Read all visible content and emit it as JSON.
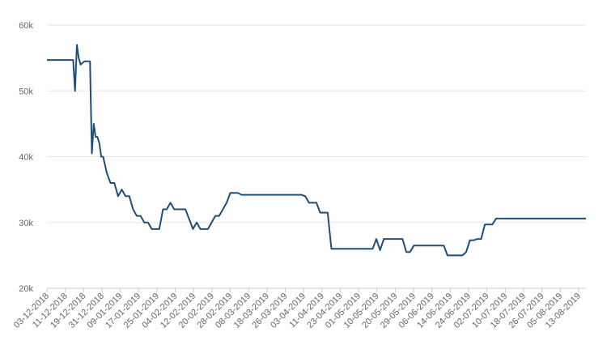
{
  "chart_data": {
    "type": "line",
    "title": "",
    "xlabel": "",
    "ylabel": "",
    "ylim": [
      20000,
      60000
    ],
    "y_ticks": [
      {
        "value": 20000,
        "label": "20k"
      },
      {
        "value": 30000,
        "label": "30k"
      },
      {
        "value": 40000,
        "label": "40k"
      },
      {
        "value": 50000,
        "label": "50k"
      },
      {
        "value": 60000,
        "label": "60k"
      }
    ],
    "x_tick_labels": [
      "03-12-2018",
      "11-12-2018",
      "19-12-2018",
      "31-12-2018",
      "09-01-2019",
      "17-01-2019",
      "25-01-2019",
      "04-02-2019",
      "12-02-2019",
      "20-02-2019",
      "28-02-2019",
      "08-03-2019",
      "18-03-2019",
      "26-03-2019",
      "03-04-2019",
      "11-04-2019",
      "23-04-2019",
      "01-05-2019",
      "10-05-2019",
      "20-05-2019",
      "29-05-2019",
      "06-06-2019",
      "14-06-2019",
      "24-06-2019",
      "02-07-2019",
      "10-07-2019",
      "18-07-2019",
      "26-07-2019",
      "05-08-2019",
      "13-08-2019"
    ],
    "grid": true,
    "line_color": "#1f4e79",
    "series": [
      {
        "x": [
          0,
          3,
          6,
          9,
          12,
          14,
          15,
          16,
          17,
          18,
          20,
          22,
          23,
          24,
          25,
          26,
          27,
          28,
          29,
          30,
          32,
          34,
          36,
          38,
          40,
          42,
          44,
          46,
          48,
          50,
          52,
          54,
          56,
          58,
          60,
          62,
          64,
          66,
          68,
          70,
          72,
          74,
          76,
          78,
          80,
          82,
          84,
          86,
          88,
          90,
          92,
          94,
          96,
          98,
          100,
          102,
          104,
          106,
          108,
          110,
          112,
          114,
          116,
          118,
          120,
          122,
          124,
          126,
          128,
          130,
          132,
          134,
          136,
          138,
          140,
          142,
          144,
          146,
          148,
          150,
          152,
          154,
          156,
          158,
          160,
          162,
          164,
          166,
          168,
          170,
          172,
          174,
          176,
          178,
          180,
          182,
          184,
          186,
          188,
          190,
          192,
          194,
          196,
          198,
          200,
          202,
          204,
          206,
          208,
          210,
          212,
          214,
          216,
          218,
          220,
          222,
          224,
          226,
          228,
          230,
          232,
          234,
          236,
          238,
          240,
          242,
          244,
          246,
          248,
          250,
          252,
          254,
          256,
          258,
          260,
          262,
          264,
          266,
          268,
          270,
          272,
          274,
          276,
          278,
          280,
          282,
          284,
          286,
          288
        ],
        "y": [
          54700,
          54700,
          54700,
          54700,
          54700,
          54700,
          50000,
          57000,
          55000,
          54000,
          54500,
          54500,
          54500,
          40500,
          45000,
          43000,
          43000,
          42000,
          40000,
          40000,
          37500,
          36000,
          36000,
          34000,
          35000,
          34000,
          34000,
          32000,
          31000,
          31000,
          30000,
          30000,
          29000,
          29000,
          29000,
          32000,
          32000,
          33000,
          32000,
          32000,
          32000,
          32000,
          30500,
          29000,
          30000,
          29000,
          29000,
          29000,
          30000,
          31000,
          31000,
          32000,
          33000,
          34500,
          34500,
          34500,
          34200,
          34200,
          34200,
          34200,
          34200,
          34200,
          34200,
          34200,
          34200,
          34200,
          34200,
          34200,
          34200,
          34200,
          34200,
          34200,
          34200,
          34000,
          33000,
          33000,
          33000,
          31500,
          31500,
          31500,
          26000,
          26000,
          26000,
          26000,
          26000,
          26000,
          26000,
          26000,
          26000,
          26000,
          26000,
          26000,
          27500,
          25800,
          27500,
          27500,
          27500,
          27500,
          27500,
          27500,
          25500,
          25500,
          26500,
          26500,
          26500,
          26500,
          26500,
          26500,
          26500,
          26500,
          26500,
          25000,
          25000,
          25000,
          25000,
          25000,
          25500,
          27300,
          27300,
          27500,
          27500,
          29700,
          29700,
          29700,
          30600,
          30600,
          30600,
          30600,
          30600,
          30600,
          30600,
          30600,
          30600,
          30600,
          30600,
          30600,
          30600,
          30600,
          30600,
          30600,
          30600,
          30600,
          30600,
          30600,
          30600,
          30600,
          30600,
          30600,
          30600
        ]
      }
    ]
  }
}
